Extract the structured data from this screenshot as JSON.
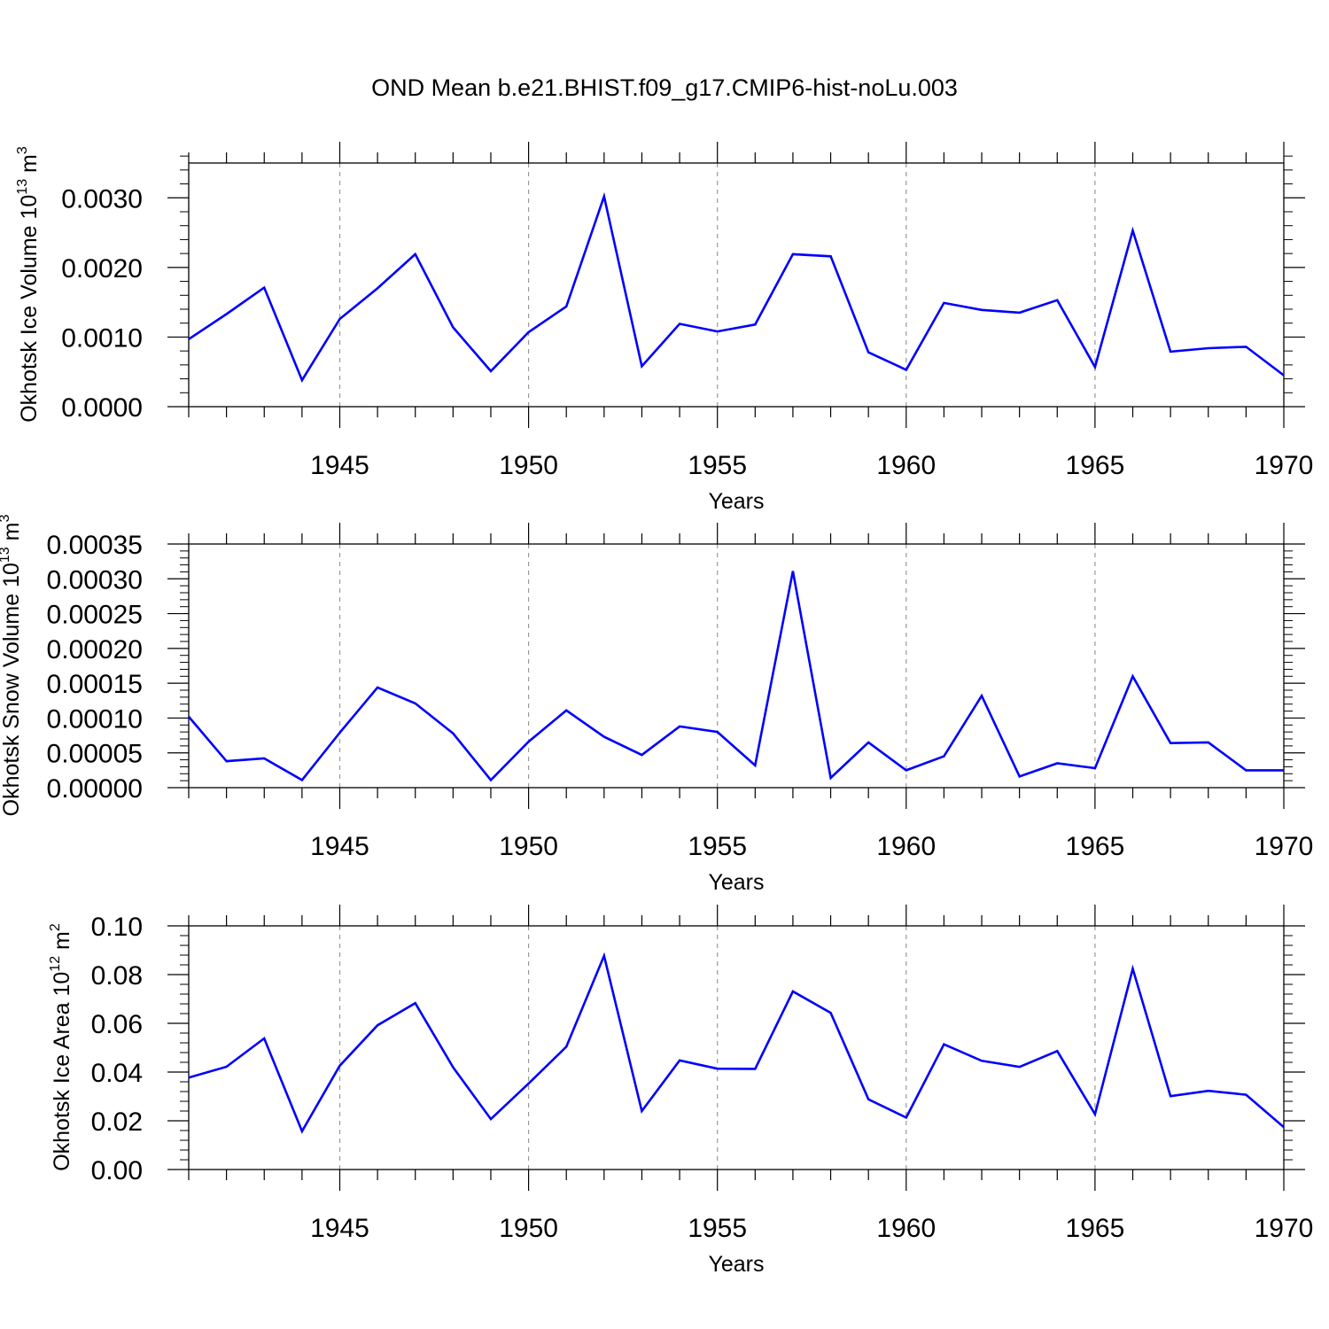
{
  "title": "OND Mean b.e21.BHIST.f09_g17.CMIP6-hist-noLu.003",
  "colors": {
    "line": "#0000ff",
    "axes": "#000000",
    "grid": "#999999"
  },
  "chart_data": [
    {
      "type": "line",
      "xlabel": "Years",
      "ylabel": {
        "text": "Okhotsk Ice Volume 10",
        "exp": "13",
        "unit": " m",
        "unit_exp": "3"
      },
      "xlim": [
        1941,
        1970
      ],
      "ylim": [
        0,
        0.0035
      ],
      "x_ticks": [
        1945,
        1950,
        1955,
        1960,
        1965,
        1970
      ],
      "x_tick_labels": [
        "1945",
        "1950",
        "1955",
        "1960",
        "1965",
        "1970"
      ],
      "y_ticks": [
        0,
        0.001,
        0.002,
        0.003
      ],
      "y_tick_labels": [
        "0.0000",
        "0.0010",
        "0.0020",
        "0.0030"
      ],
      "y_minor_step": 0.0002,
      "grid": "vertical-dashed",
      "series": [
        {
          "name": "Okhotsk Ice Volume",
          "x": [
            1941,
            1942,
            1943,
            1944,
            1945,
            1946,
            1947,
            1948,
            1949,
            1950,
            1951,
            1952,
            1953,
            1954,
            1955,
            1956,
            1957,
            1958,
            1959,
            1960,
            1961,
            1962,
            1963,
            1964,
            1965,
            1966,
            1967,
            1968,
            1969,
            1970
          ],
          "values": [
            0.00097,
            0.00133,
            0.00171,
            0.00038,
            0.00126,
            0.0017,
            0.00219,
            0.00114,
            0.00051,
            0.00107,
            0.00144,
            0.00302,
            0.00058,
            0.00119,
            0.00108,
            0.00118,
            0.00219,
            0.00216,
            0.00078,
            0.00053,
            0.00149,
            0.00139,
            0.00135,
            0.00153,
            0.00057,
            0.00253,
            0.00079,
            0.00084,
            0.00086,
            0.00045
          ]
        }
      ]
    },
    {
      "type": "line",
      "xlabel": "Years",
      "ylabel": {
        "text": "Okhotsk Snow Volume 10",
        "exp": "13",
        "unit": " m",
        "unit_exp": "3"
      },
      "xlim": [
        1941,
        1970
      ],
      "ylim": [
        0,
        0.00035
      ],
      "x_ticks": [
        1945,
        1950,
        1955,
        1960,
        1965,
        1970
      ],
      "x_tick_labels": [
        "1945",
        "1950",
        "1955",
        "1960",
        "1965",
        "1970"
      ],
      "y_ticks": [
        0,
        5e-05,
        0.0001,
        0.00015,
        0.0002,
        0.00025,
        0.0003,
        0.00035
      ],
      "y_tick_labels": [
        "0.00000",
        "0.00005",
        "0.00010",
        "0.00015",
        "0.00020",
        "0.00025",
        "0.00030",
        "0.00035"
      ],
      "y_minor_step": 1e-05,
      "grid": "vertical-dashed",
      "series": [
        {
          "name": "Okhotsk Snow Volume",
          "x": [
            1941,
            1942,
            1943,
            1944,
            1945,
            1946,
            1947,
            1948,
            1949,
            1950,
            1951,
            1952,
            1953,
            1954,
            1955,
            1956,
            1957,
            1958,
            1959,
            1960,
            1961,
            1962,
            1963,
            1964,
            1965,
            1966,
            1967,
            1968,
            1969,
            1970
          ],
          "values": [
            0.000102,
            3.8e-05,
            4.2e-05,
            1.1e-05,
            7.9e-05,
            0.000144,
            0.000121,
            7.8e-05,
            1.1e-05,
            6.6e-05,
            0.000111,
            7.3e-05,
            4.7e-05,
            8.8e-05,
            8e-05,
            3.2e-05,
            0.000311,
            1.4e-05,
            6.5e-05,
            2.5e-05,
            4.5e-05,
            0.000132,
            1.6e-05,
            3.5e-05,
            2.8e-05,
            0.00016,
            6.4e-05,
            6.5e-05,
            2.5e-05,
            2.5e-05
          ]
        }
      ]
    },
    {
      "type": "line",
      "xlabel": "Years",
      "ylabel": {
        "text": "Okhotsk Ice Area 10",
        "exp": "12",
        "unit": " m",
        "unit_exp": "2"
      },
      "xlim": [
        1941,
        1970
      ],
      "ylim": [
        0,
        0.1
      ],
      "x_ticks": [
        1945,
        1950,
        1955,
        1960,
        1965,
        1970
      ],
      "x_tick_labels": [
        "1945",
        "1950",
        "1955",
        "1960",
        "1965",
        "1970"
      ],
      "y_ticks": [
        0,
        0.02,
        0.04,
        0.06,
        0.08,
        0.1
      ],
      "y_tick_labels": [
        "0.00",
        "0.02",
        "0.04",
        "0.06",
        "0.08",
        "0.10"
      ],
      "y_minor_step": 0.004,
      "grid": "vertical-dashed",
      "series": [
        {
          "name": "Okhotsk Ice Area",
          "x": [
            1941,
            1942,
            1943,
            1944,
            1945,
            1946,
            1947,
            1948,
            1949,
            1950,
            1951,
            1952,
            1953,
            1954,
            1955,
            1956,
            1957,
            1958,
            1959,
            1960,
            1961,
            1962,
            1963,
            1964,
            1965,
            1966,
            1967,
            1968,
            1969,
            1970
          ],
          "values": [
            0.0377,
            0.0422,
            0.0538,
            0.0157,
            0.0426,
            0.0592,
            0.0683,
            0.042,
            0.0207,
            0.0353,
            0.0504,
            0.0877,
            0.024,
            0.0448,
            0.0414,
            0.0413,
            0.0731,
            0.0643,
            0.0288,
            0.0213,
            0.0514,
            0.0446,
            0.0421,
            0.0486,
            0.0227,
            0.0824,
            0.0301,
            0.0323,
            0.0307,
            0.0174
          ]
        }
      ]
    }
  ]
}
